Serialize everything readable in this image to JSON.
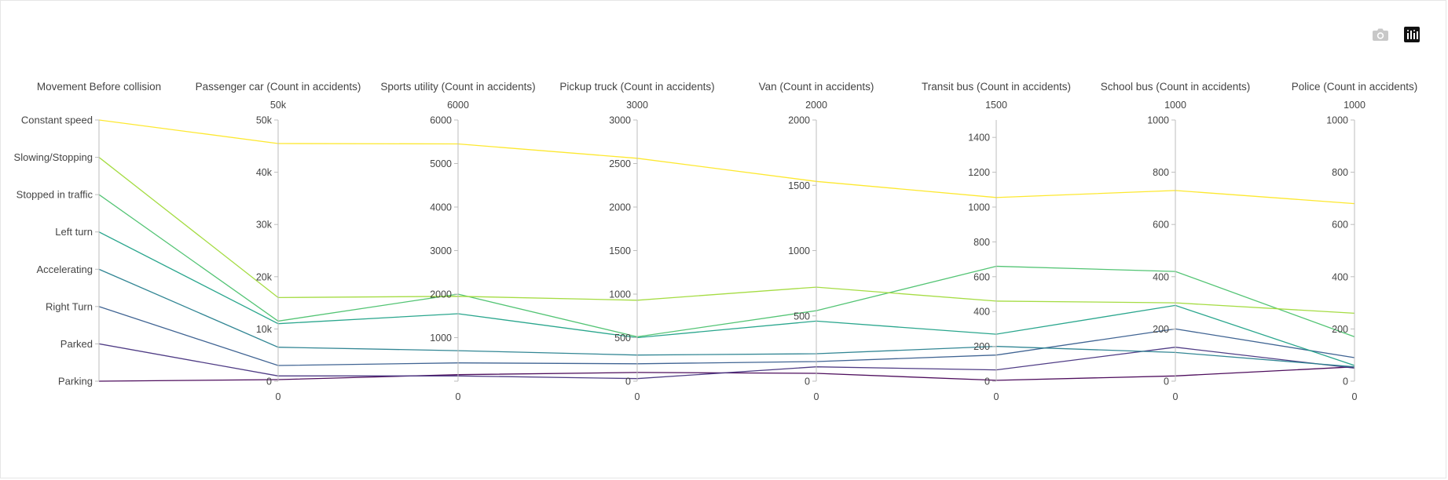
{
  "toolbar": {
    "camera_icon": "camera-icon",
    "plotly_icon": "plotly-logo-icon",
    "camera_color": "#c8c8c8",
    "logo_bg": "#111111"
  },
  "chart_data": {
    "type": "parallel_coordinates",
    "colorscale": "viridis",
    "dimensions": [
      {
        "label": "Movement Before collision",
        "categorical": true,
        "ticktext": [
          "Parking",
          "Parked",
          "Right Turn",
          "Accelerating",
          "Left turn",
          "Stopped in traffic",
          "Slowing/Stopping",
          "Constant speed"
        ]
      },
      {
        "label": "Passenger car (Count in accidents)",
        "range": [
          0,
          50000
        ],
        "top": "50k",
        "bottom": "0",
        "ticks": [
          0,
          10000,
          20000,
          30000,
          40000,
          50000
        ],
        "ticktext": [
          "0",
          "10k",
          "20k",
          "30k",
          "40k",
          "50k"
        ]
      },
      {
        "label": "Sports utility (Count in accidents)",
        "range": [
          0,
          6000
        ],
        "top": "6000",
        "bottom": "0",
        "ticks": [
          0,
          1000,
          2000,
          3000,
          4000,
          5000,
          6000
        ],
        "ticktext": [
          "",
          "1000",
          "2000",
          "3000",
          "4000",
          "5000",
          "6000"
        ]
      },
      {
        "label": "Pickup truck (Count in accidents)",
        "range": [
          0,
          3000
        ],
        "top": "3000",
        "bottom": "0",
        "ticks": [
          0,
          500,
          1000,
          1500,
          2000,
          2500,
          3000
        ],
        "ticktext": [
          "0",
          "500",
          "1000",
          "1500",
          "2000",
          "2500",
          "3000"
        ]
      },
      {
        "label": "Van (Count in accidents)",
        "range": [
          0,
          2000
        ],
        "top": "2000",
        "bottom": "0",
        "ticks": [
          0,
          500,
          1000,
          1500,
          2000
        ],
        "ticktext": [
          "0",
          "500",
          "1000",
          "1500",
          "2000"
        ]
      },
      {
        "label": "Transit bus (Count in accidents)",
        "range": [
          0,
          1500
        ],
        "top": "1500",
        "bottom": "0",
        "ticks": [
          0,
          200,
          400,
          600,
          800,
          1000,
          1200,
          1400
        ],
        "ticktext": [
          "0",
          "200",
          "400",
          "600",
          "800",
          "1000",
          "1200",
          "1400"
        ]
      },
      {
        "label": "School bus (Count in accidents)",
        "range": [
          0,
          1000
        ],
        "top": "1000",
        "bottom": "0",
        "ticks": [
          0,
          200,
          400,
          600,
          800,
          1000
        ],
        "ticktext": [
          "0",
          "200",
          "400",
          "600",
          "800",
          "1000"
        ]
      },
      {
        "label": "Police (Count in accidents)",
        "range": [
          0,
          1000
        ],
        "top": "1000",
        "bottom": "0",
        "ticks": [
          0,
          200,
          400,
          600,
          800,
          1000
        ],
        "ticktext": [
          "0",
          "200",
          "400",
          "600",
          "800",
          "1000"
        ]
      }
    ],
    "lines": [
      {
        "category": "Constant speed",
        "color": "#fde725",
        "values": [
          7,
          45500,
          5450,
          2560,
          1530,
          1055,
          730,
          680
        ]
      },
      {
        "category": "Slowing/Stopping",
        "color": "#a0da39",
        "values": [
          6,
          16000,
          1950,
          930,
          720,
          460,
          300,
          260
        ]
      },
      {
        "category": "Stopped in traffic",
        "color": "#4ac16d",
        "values": [
          5,
          11500,
          2000,
          510,
          540,
          660,
          420,
          170
        ]
      },
      {
        "category": "Left turn",
        "color": "#1fa187",
        "values": [
          4,
          11000,
          1550,
          500,
          460,
          270,
          290,
          60
        ]
      },
      {
        "category": "Accelerating",
        "color": "#277f8e",
        "values": [
          3,
          6500,
          700,
          300,
          210,
          200,
          110,
          55
        ]
      },
      {
        "category": "Right Turn",
        "color": "#365c8d",
        "values": [
          2,
          3000,
          420,
          200,
          150,
          150,
          200,
          90
        ]
      },
      {
        "category": "Parked",
        "color": "#46327e",
        "values": [
          1,
          1000,
          120,
          30,
          110,
          65,
          130,
          50
        ]
      },
      {
        "category": "Parking",
        "color": "#440154",
        "values": [
          0,
          300,
          150,
          100,
          60,
          5,
          20,
          55
        ]
      }
    ]
  }
}
